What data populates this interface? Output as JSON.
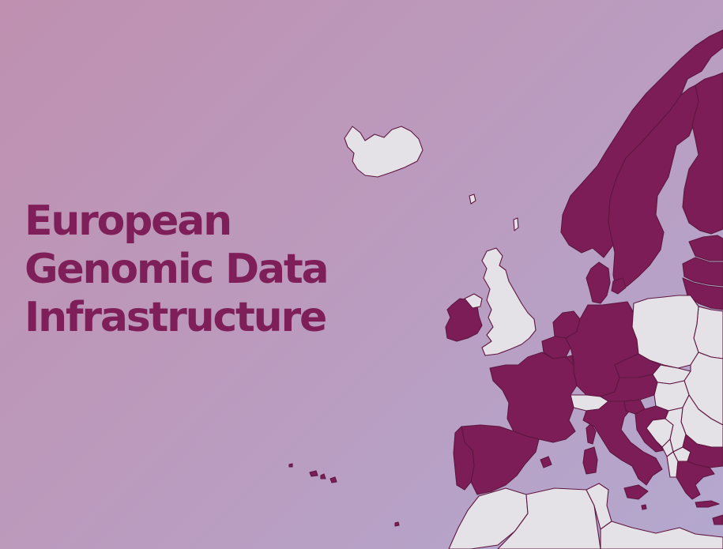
{
  "title": {
    "line1": "European",
    "line2": "Genomic Data",
    "line3": "Infrastructure"
  },
  "colors": {
    "background_start": "#bf90b0",
    "background_end": "#b4a8cf",
    "title_text": "#7f1f5a",
    "participating_country": "#7c1d57",
    "other_country": "#e4e2e6",
    "border": "#5e1640"
  },
  "map": {
    "participating_countries": [
      "Norway",
      "Sweden",
      "Finland",
      "Estonia",
      "Latvia",
      "Lithuania",
      "Denmark",
      "Ireland",
      "Netherlands",
      "Belgium",
      "Luxembourg",
      "Germany",
      "France",
      "Czechia",
      "Austria",
      "Slovenia",
      "Italy",
      "Spain",
      "Portugal",
      "Croatia",
      "Bulgaria",
      "Greece",
      "Cyprus",
      "Malta"
    ],
    "other_countries": [
      "Iceland",
      "United Kingdom",
      "Northern Ireland",
      "Switzerland",
      "Poland",
      "Belarus",
      "Ukraine",
      "Slovakia",
      "Hungary",
      "Romania",
      "Serbia",
      "Bosnia and Herzegovina",
      "Montenegro",
      "Albania",
      "North Macedonia",
      "Morocco",
      "Algeria",
      "Tunisia",
      "Libya"
    ]
  }
}
